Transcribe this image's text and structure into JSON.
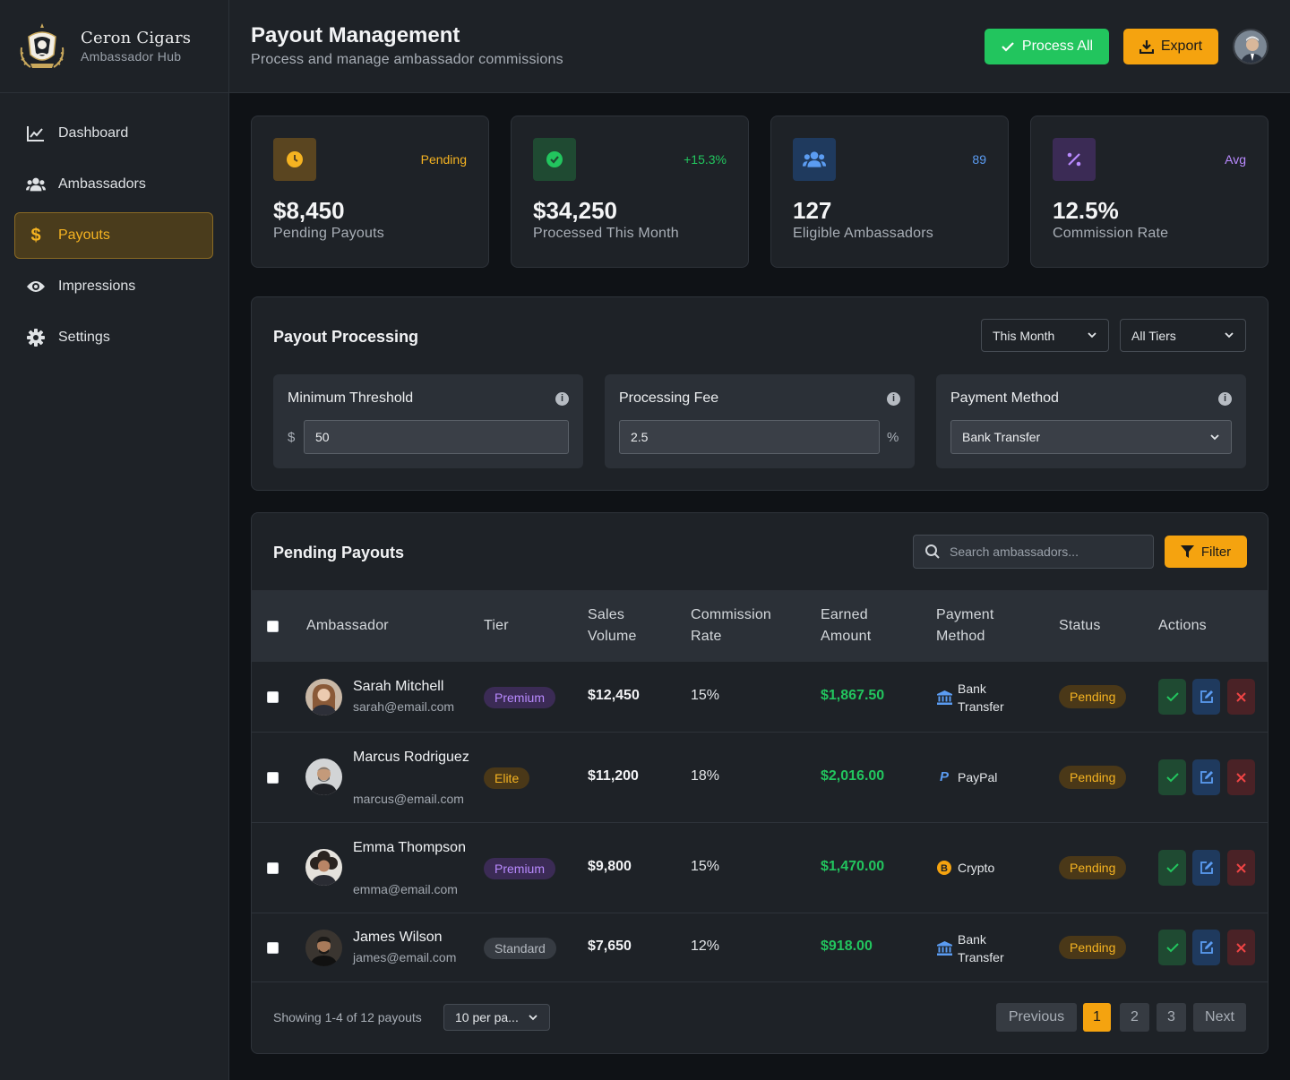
{
  "brand": {
    "name": "Ceron Cigars",
    "subtitle": "Ambassador Hub"
  },
  "nav": [
    {
      "label": "Dashboard",
      "icon": "chart-line-icon",
      "active": false
    },
    {
      "label": "Ambassadors",
      "icon": "users-icon",
      "active": false
    },
    {
      "label": "Payouts",
      "icon": "dollar-icon",
      "active": true
    },
    {
      "label": "Impressions",
      "icon": "eye-icon",
      "active": false
    },
    {
      "label": "Settings",
      "icon": "gear-icon",
      "active": false
    }
  ],
  "header": {
    "title": "Payout Management",
    "subtitle": "Process and manage ambassador commissions",
    "process_all": "Process All",
    "export": "Export"
  },
  "stats": [
    {
      "value": "$8,450",
      "label": "Pending Payouts",
      "tag": "Pending",
      "icon": "clock-icon",
      "color": "#f5b321"
    },
    {
      "value": "$34,250",
      "label": "Processed This Month",
      "tag": "+15.3%",
      "icon": "check-circle-icon",
      "color": "#22c55e"
    },
    {
      "value": "127",
      "label": "Eligible Ambassadors",
      "tag": "89",
      "icon": "users-icon",
      "color": "#5b9cf2"
    },
    {
      "value": "12.5%",
      "label": "Commission Rate",
      "tag": "Avg",
      "icon": "percent-icon",
      "color": "#b98aff"
    }
  ],
  "processing": {
    "title": "Payout Processing",
    "period": "This Month",
    "tiers": "All Tiers",
    "threshold": {
      "label": "Minimum Threshold",
      "prefix": "$",
      "value": "50"
    },
    "fee": {
      "label": "Processing Fee",
      "value": "2.5",
      "suffix": "%"
    },
    "method": {
      "label": "Payment Method",
      "value": "Bank Transfer"
    }
  },
  "pending": {
    "title": "Pending Payouts",
    "search_placeholder": "Search ambassadors...",
    "filter": "Filter",
    "columns": {
      "ambassador": "Ambassador",
      "tier": "Tier",
      "sales": "Sales Volume",
      "commission": "Commission Rate",
      "earned": "Earned Amount",
      "method": "Payment Method",
      "status": "Status",
      "actions": "Actions"
    },
    "rows": [
      {
        "name": "Sarah Mitchell",
        "email": "sarah@email.com",
        "tier": "Premium",
        "sales": "$12,450",
        "rate": "15%",
        "earned": "$1,867.50",
        "method": "Bank Transfer",
        "status": "Pending"
      },
      {
        "name": "Marcus Rodriguez",
        "email": "marcus@email.com",
        "tier": "Elite",
        "sales": "$11,200",
        "rate": "18%",
        "earned": "$2,016.00",
        "method": "PayPal",
        "status": "Pending"
      },
      {
        "name": "Emma Thompson",
        "email": "emma@email.com",
        "tier": "Premium",
        "sales": "$9,800",
        "rate": "15%",
        "earned": "$1,470.00",
        "method": "Crypto",
        "status": "Pending"
      },
      {
        "name": "James Wilson",
        "email": "james@email.com",
        "tier": "Standard",
        "sales": "$7,650",
        "rate": "12%",
        "earned": "$918.00",
        "method": "Bank Transfer",
        "status": "Pending"
      }
    ],
    "showing": "Showing 1-4 of 12 payouts",
    "per_page": "10 per pa...",
    "pagination": {
      "prev": "Previous",
      "pages": [
        "1",
        "2",
        "3"
      ],
      "current": "1",
      "next": "Next"
    }
  }
}
